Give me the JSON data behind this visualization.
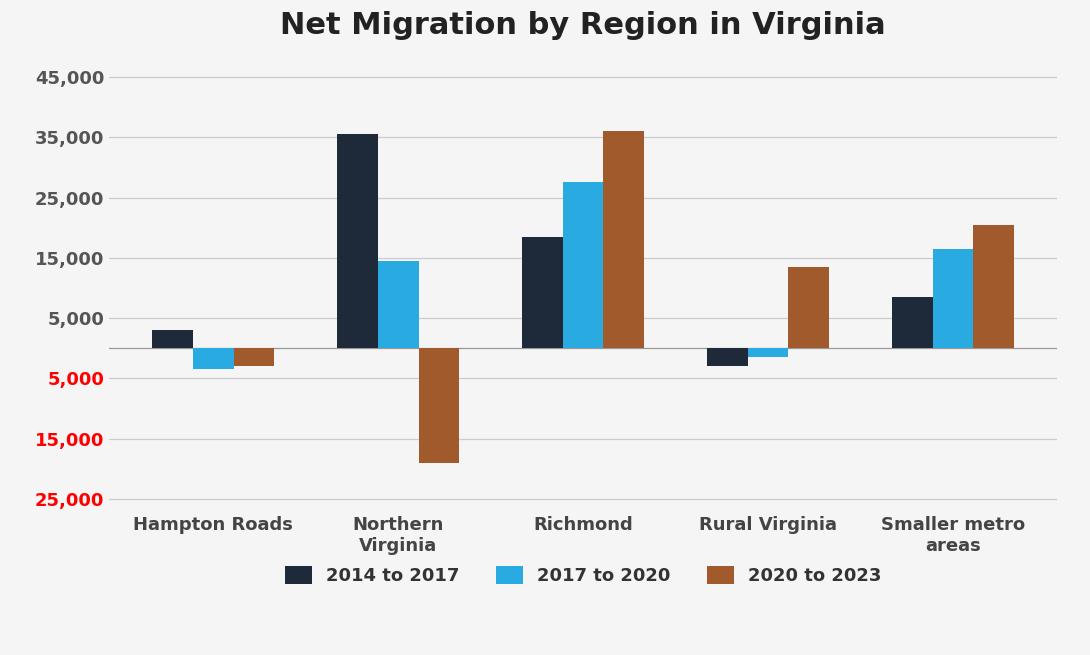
{
  "title": "Net Migration by Region in Virginia",
  "categories": [
    "Hampton Roads",
    "Northern\nVirginia",
    "Richmond",
    "Rural Virginia",
    "Smaller metro\nareas"
  ],
  "series": {
    "2014 to 2017": [
      3000,
      35500,
      18500,
      -3000,
      8500
    ],
    "2017 to 2020": [
      -3500,
      14500,
      27500,
      -1500,
      16500
    ],
    "2020 to 2023": [
      -3000,
      -19000,
      36000,
      13500,
      20500
    ]
  },
  "series_colors": {
    "2014 to 2017": "#1e2a3a",
    "2017 to 2020": "#29aae1",
    "2020 to 2023": "#a05a2c"
  },
  "ylim": [
    -27000,
    48000
  ],
  "yticks": [
    -25000,
    -15000,
    -5000,
    5000,
    15000,
    25000,
    35000,
    45000
  ],
  "background_color": "#f5f5f5",
  "grid_color": "#cccccc",
  "title_fontsize": 22,
  "tick_fontsize": 13,
  "legend_fontsize": 13,
  "bar_width": 0.22
}
